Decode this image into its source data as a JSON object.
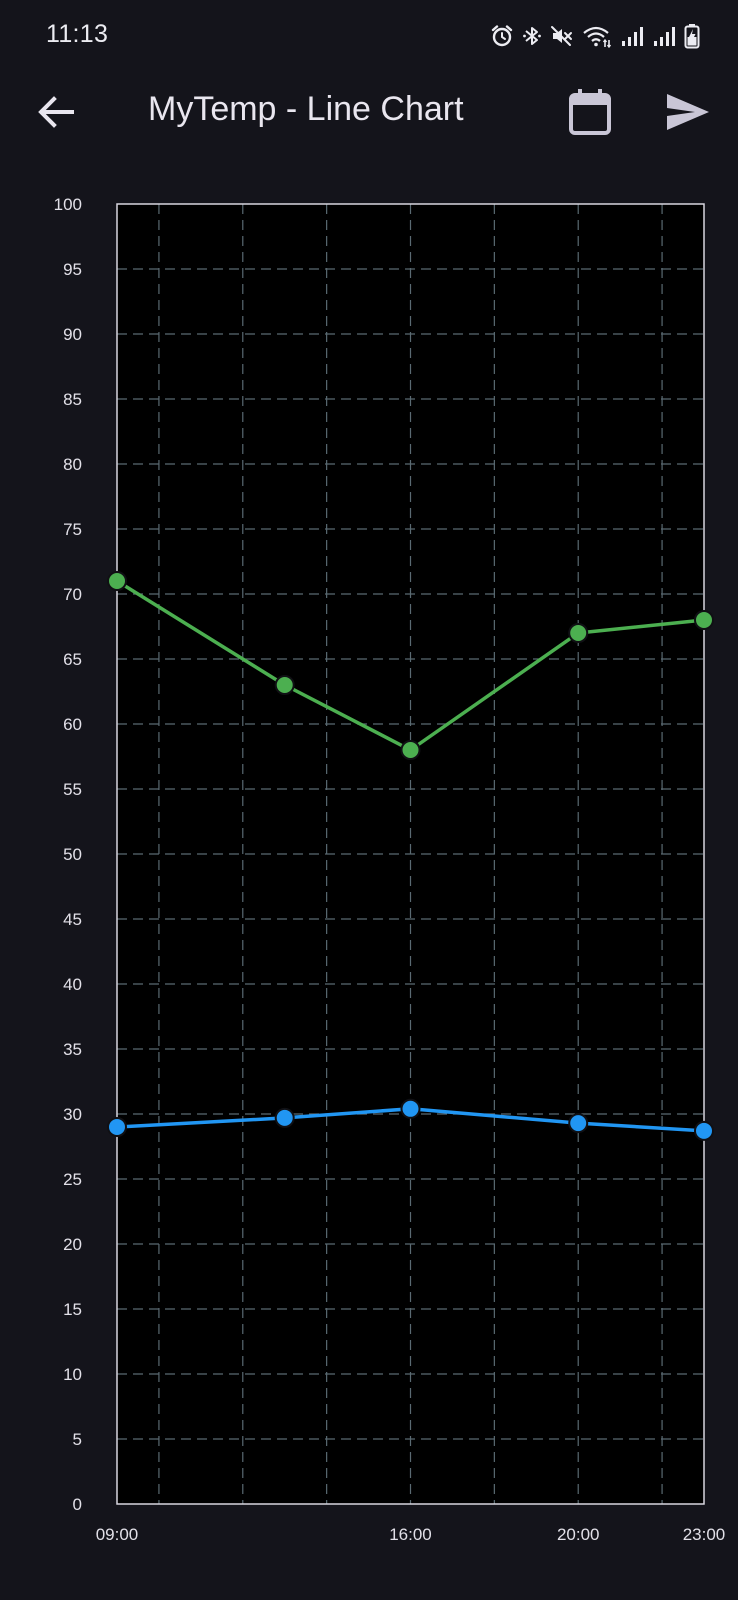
{
  "status_bar": {
    "time": "11:13",
    "icons": [
      "alarm-icon",
      "bluetooth-icon",
      "mute-icon",
      "wifi-icon",
      "signal-icon",
      "signal-icon",
      "battery-charging-icon"
    ]
  },
  "app_bar": {
    "title": "MyTemp - Line Chart",
    "back_icon": "arrow-left-icon",
    "calendar_icon": "calendar-icon",
    "send_icon": "send-icon"
  },
  "colors": {
    "background": "#14141b",
    "plot_background": "#000000",
    "grid": "#5a6a72",
    "green_series": "#4caf50",
    "blue_series": "#2196f3"
  },
  "chart_data": {
    "type": "line",
    "title": "",
    "xlabel": "",
    "ylabel": "",
    "ylim": [
      0,
      100
    ],
    "y_ticks": [
      "0",
      "5",
      "10",
      "15",
      "20",
      "25",
      "30",
      "35",
      "40",
      "45",
      "50",
      "55",
      "60",
      "65",
      "70",
      "75",
      "80",
      "85",
      "90",
      "95",
      "100"
    ],
    "xlim": [
      "09:00",
      "23:00"
    ],
    "x_ticks": [
      "09:00",
      "16:00",
      "20:00",
      "23:00"
    ],
    "grid": true,
    "legend": "none",
    "series": [
      {
        "color": "#4caf50",
        "points": [
          {
            "x": "09:00",
            "y": 71
          },
          {
            "x": "13:00",
            "y": 63
          },
          {
            "x": "16:00",
            "y": 58
          },
          {
            "x": "20:00",
            "y": 67
          },
          {
            "x": "23:00",
            "y": 68
          }
        ]
      },
      {
        "color": "#2196f3",
        "points": [
          {
            "x": "09:00",
            "y": 29
          },
          {
            "x": "13:00",
            "y": 29.7
          },
          {
            "x": "16:00",
            "y": 30.4
          },
          {
            "x": "20:00",
            "y": 29.3
          },
          {
            "x": "23:00",
            "y": 28.7
          }
        ]
      }
    ]
  }
}
